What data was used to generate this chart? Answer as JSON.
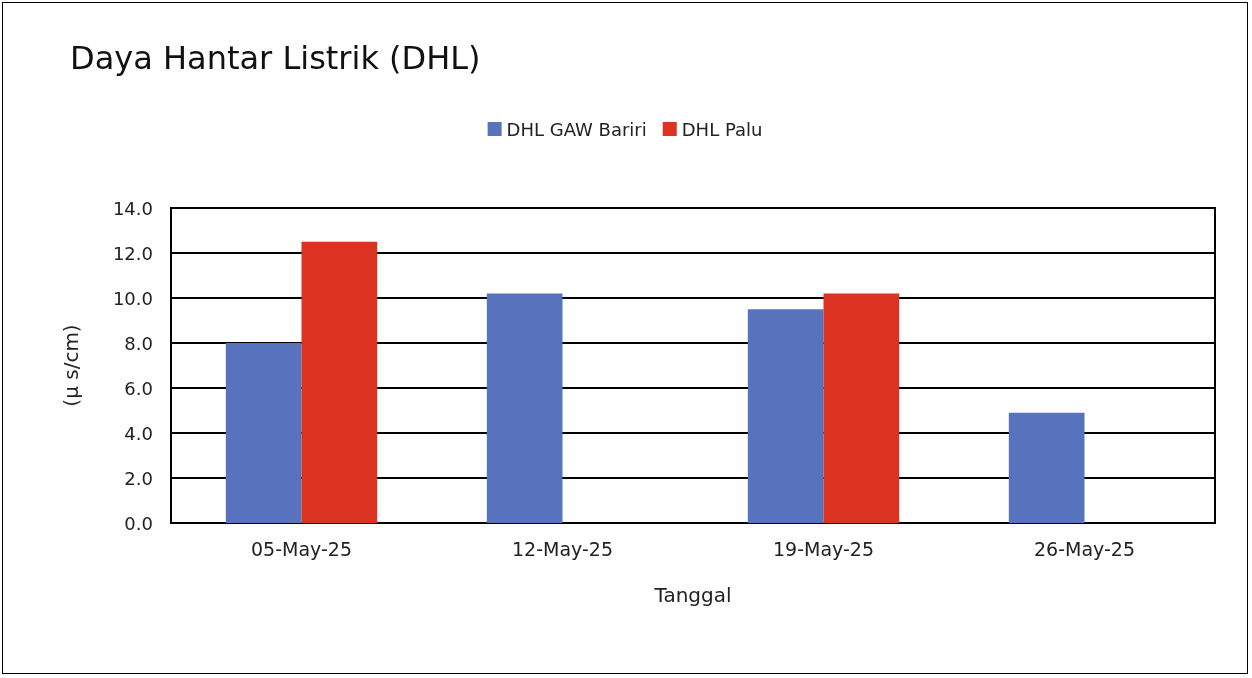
{
  "chart_data": {
    "type": "bar",
    "title": "Daya Hantar Listrik (DHL)",
    "xlabel": "Tanggal",
    "ylabel": "(μ s/cm)",
    "categories": [
      "05-May-25",
      "12-May-25",
      "19-May-25",
      "26-May-25"
    ],
    "series": [
      {
        "name": "DHL GAW Bariri",
        "color": "#5873bd",
        "values": [
          8.0,
          10.2,
          9.5,
          4.9
        ]
      },
      {
        "name": "DHL Palu",
        "color": "#dc3221",
        "values": [
          12.5,
          null,
          10.2,
          null
        ]
      }
    ],
    "ylim": [
      0,
      14
    ],
    "yticks": [
      {
        "value": 0,
        "label": "0.0"
      },
      {
        "value": 2,
        "label": "2.0"
      },
      {
        "value": 4,
        "label": "4.0"
      },
      {
        "value": 6,
        "label": "6.0"
      },
      {
        "value": 8,
        "label": "8.0"
      },
      {
        "value": 10,
        "label": "10.0"
      },
      {
        "value": 12,
        "label": "12.0"
      },
      {
        "value": 14,
        "label": "14.0"
      }
    ],
    "grid": "y",
    "legend": "top"
  }
}
